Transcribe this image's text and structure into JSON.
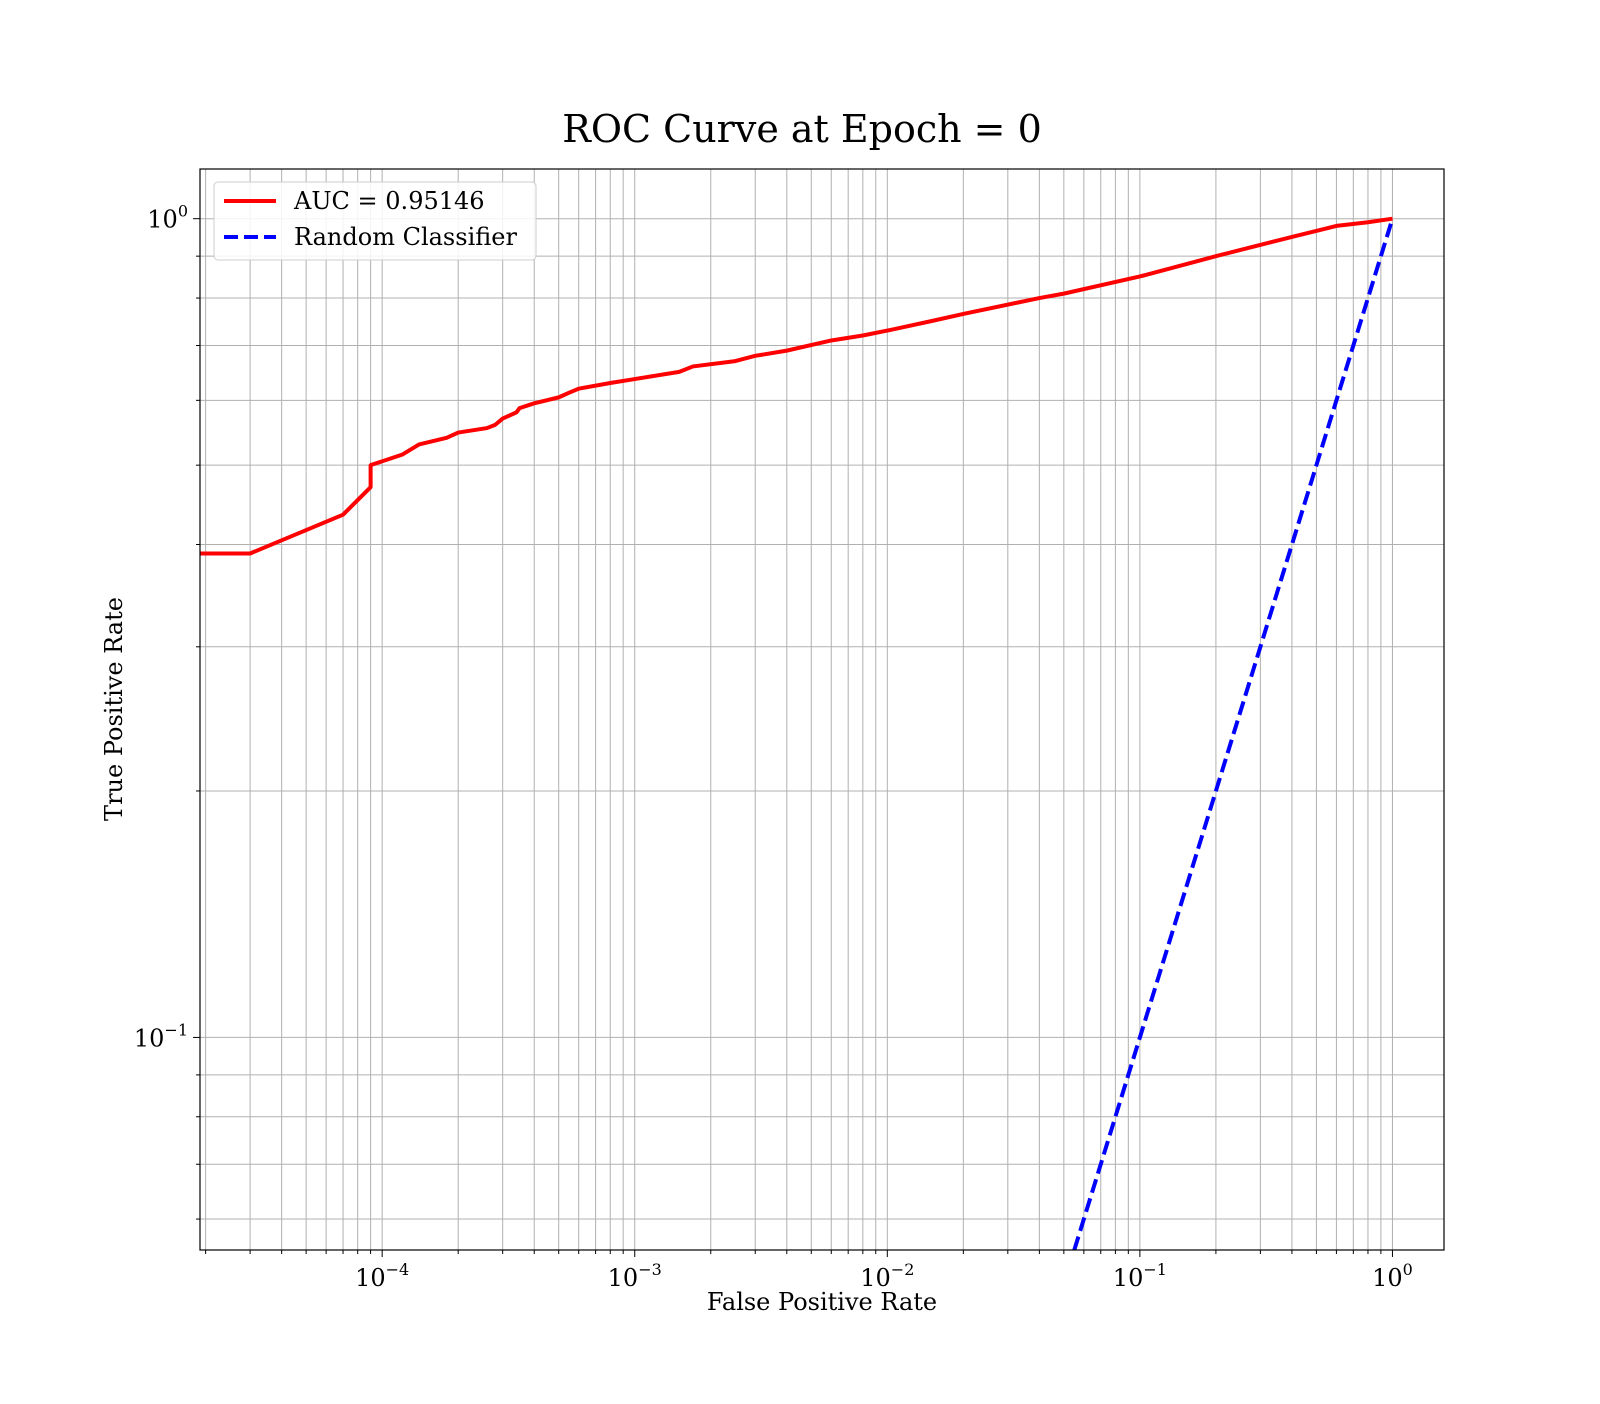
{
  "chart_data": {
    "type": "line",
    "title": "ROC Curve at Epoch = 0",
    "xlabel": "False Positive Rate",
    "ylabel": "True Positive Rate",
    "xscale": "log",
    "yscale": "log",
    "xlim": [
      1.9e-05,
      1.6
    ],
    "ylim": [
      0.055,
      1.15
    ],
    "grid": true,
    "grid_minor": true,
    "legend_position": "upper-left",
    "x_ticks": [
      {
        "value": 0.0001,
        "base": "10",
        "exp": "−4"
      },
      {
        "value": 0.001,
        "base": "10",
        "exp": "−3"
      },
      {
        "value": 0.01,
        "base": "10",
        "exp": "−2"
      },
      {
        "value": 0.1,
        "base": "10",
        "exp": "−1"
      },
      {
        "value": 1,
        "base": "10",
        "exp": "0"
      }
    ],
    "y_ticks": [
      {
        "value": 0.1,
        "base": "10",
        "exp": "−1"
      },
      {
        "value": 1,
        "base": "10",
        "exp": "0"
      }
    ],
    "series": [
      {
        "name": "AUC = 0.95146",
        "color": "#ff0000",
        "dash": "solid",
        "x": [
          1.9e-05,
          3e-05,
          7e-05,
          9e-05,
          9e-05,
          0.00012,
          0.00014,
          0.00018,
          0.0002,
          0.00026,
          0.00028,
          0.0003,
          0.00034,
          0.00035,
          0.0004,
          0.0005,
          0.00055,
          0.0006,
          0.0008,
          0.001,
          0.0015,
          0.0017,
          0.0025,
          0.003,
          0.004,
          0.006,
          0.008,
          0.01,
          0.015,
          0.02,
          0.04,
          0.05,
          0.1,
          0.2,
          0.4,
          0.6,
          0.8,
          1.0
        ],
        "y": [
          0.39,
          0.39,
          0.435,
          0.47,
          0.5,
          0.515,
          0.53,
          0.54,
          0.548,
          0.555,
          0.56,
          0.57,
          0.58,
          0.587,
          0.595,
          0.605,
          0.613,
          0.62,
          0.63,
          0.637,
          0.65,
          0.66,
          0.67,
          0.68,
          0.69,
          0.71,
          0.72,
          0.73,
          0.75,
          0.765,
          0.8,
          0.81,
          0.85,
          0.9,
          0.95,
          0.98,
          0.99,
          1.0
        ]
      },
      {
        "name": "Random Classifier",
        "color": "#0000ff",
        "dash": "dashed",
        "x": [
          0.055,
          1.0
        ],
        "y": [
          0.055,
          1.0
        ]
      }
    ]
  }
}
